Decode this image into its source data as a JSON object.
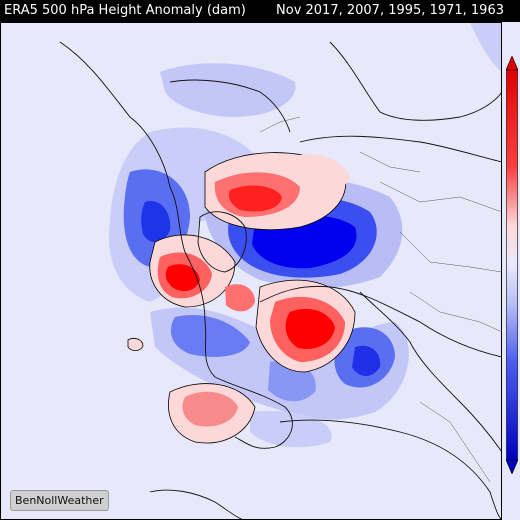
{
  "header": {
    "title": "ERA5 500 hPa Height Anomaly (dam)",
    "subtitle": "Nov 2017, 2007, 1995, 1971, 1963"
  },
  "credit": {
    "label": "BenNollWeather"
  },
  "colors": {
    "background": "#e8e8fb",
    "neutral_fill": "#e0e0f8",
    "positive_strong": "#ff0000",
    "positive_mid": "#ff7070",
    "positive_weak": "#fcd8d8",
    "negative_strong": "#0000ee",
    "negative_mid": "#4a5ef0",
    "negative_weak": "#b8bdf6",
    "land_outline": "#111111",
    "frame": "#000000"
  },
  "map": {
    "projection": "polar stereographic (north pole)",
    "field": "500 hPa geopotential height anomaly",
    "anomaly_centers": [
      {
        "sign": "positive",
        "strength": "strong",
        "region": "Alaska / Bering Sea"
      },
      {
        "sign": "positive",
        "strength": "moderate",
        "region": "northern Siberia / Laptev Sea"
      },
      {
        "sign": "positive",
        "strength": "strong",
        "region": "Greenland / North Atlantic"
      },
      {
        "sign": "positive",
        "strength": "weak",
        "region": "central Pacific"
      },
      {
        "sign": "positive",
        "strength": "moderate",
        "region": "northern Africa"
      },
      {
        "sign": "negative",
        "strength": "strong",
        "region": "Canadian Arctic / Hudson Bay"
      },
      {
        "sign": "negative",
        "strength": "moderate",
        "region": "eastern Siberia"
      },
      {
        "sign": "negative",
        "strength": "moderate",
        "region": "Gulf of Alaska / NE Pacific"
      },
      {
        "sign": "negative",
        "strength": "moderate",
        "region": "northern Europe / Scandinavia"
      },
      {
        "sign": "negative",
        "strength": "moderate",
        "region": "mid-Atlantic"
      }
    ]
  },
  "colorbar": {
    "orientation": "vertical",
    "top_color": "#e00000",
    "bottom_color": "#0000c0"
  }
}
